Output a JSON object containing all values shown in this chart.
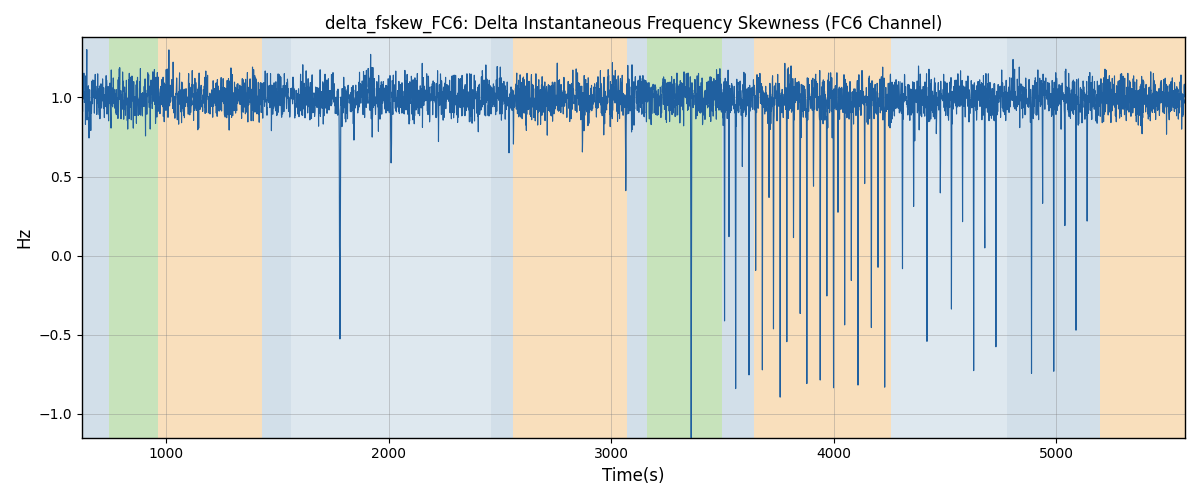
{
  "title": "delta_fskew_FC6: Delta Instantaneous Frequency Skewness (FC6 Channel)",
  "xlabel": "Time(s)",
  "ylabel": "Hz",
  "xlim": [
    620,
    5580
  ],
  "ylim": [
    -1.15,
    1.38
  ],
  "yticks": [
    -1.0,
    -0.5,
    0.0,
    0.5,
    1.0
  ],
  "xticks": [
    1000,
    2000,
    3000,
    4000,
    5000
  ],
  "line_color": "#2060a0",
  "line_width": 0.8,
  "background_regions": [
    {
      "xmin": 620,
      "xmax": 740,
      "color": "#aec6d8",
      "alpha": 0.55
    },
    {
      "xmin": 740,
      "xmax": 960,
      "color": "#90c878",
      "alpha": 0.5
    },
    {
      "xmin": 960,
      "xmax": 1430,
      "color": "#f5c07a",
      "alpha": 0.5
    },
    {
      "xmin": 1430,
      "xmax": 1560,
      "color": "#aec6d8",
      "alpha": 0.55
    },
    {
      "xmin": 1560,
      "xmax": 2460,
      "color": "#aec6d8",
      "alpha": 0.4
    },
    {
      "xmin": 2460,
      "xmax": 2560,
      "color": "#aec6d8",
      "alpha": 0.55
    },
    {
      "xmin": 2560,
      "xmax": 3070,
      "color": "#f5c07a",
      "alpha": 0.5
    },
    {
      "xmin": 3070,
      "xmax": 3160,
      "color": "#aec6d8",
      "alpha": 0.55
    },
    {
      "xmin": 3160,
      "xmax": 3500,
      "color": "#90c878",
      "alpha": 0.5
    },
    {
      "xmin": 3500,
      "xmax": 3640,
      "color": "#aec6d8",
      "alpha": 0.55
    },
    {
      "xmin": 3640,
      "xmax": 4260,
      "color": "#f5c07a",
      "alpha": 0.5
    },
    {
      "xmin": 4260,
      "xmax": 4780,
      "color": "#aec6d8",
      "alpha": 0.4
    },
    {
      "xmin": 4780,
      "xmax": 4870,
      "color": "#aec6d8",
      "alpha": 0.55
    },
    {
      "xmin": 4870,
      "xmax": 5200,
      "color": "#aec6d8",
      "alpha": 0.55
    },
    {
      "xmin": 5200,
      "xmax": 5580,
      "color": "#f5c07a",
      "alpha": 0.5
    }
  ],
  "seed": 12345,
  "n_points": 4960
}
